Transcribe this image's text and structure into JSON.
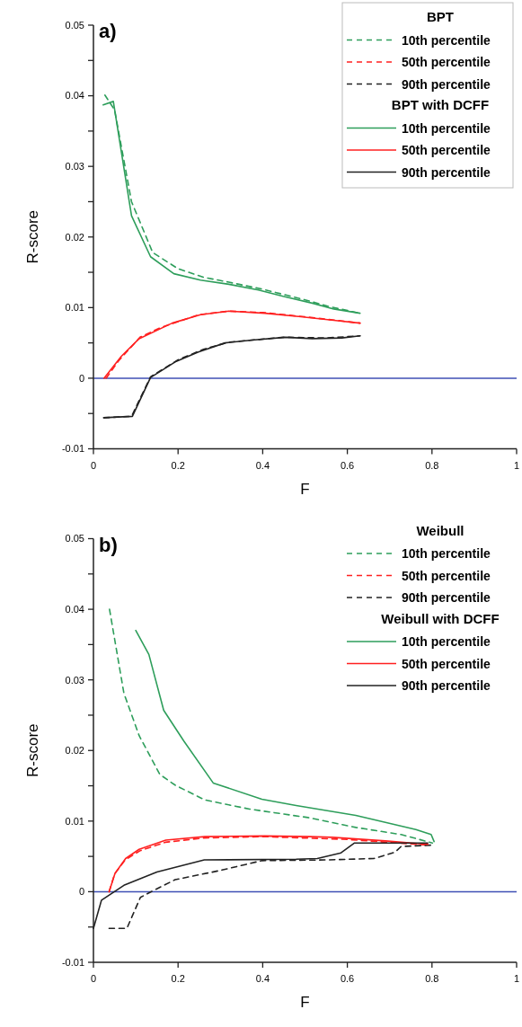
{
  "chart_data": [
    {
      "type": "line",
      "title": "a)",
      "xlabel": "F",
      "ylabel": "R-score",
      "xlim": [
        0,
        1
      ],
      "ylim": [
        -0.01,
        0.05
      ],
      "xticks": [
        0,
        0.2,
        0.4,
        0.6,
        0.8,
        1
      ],
      "yticks": [
        -0.01,
        {
          "value": -0.005,
          "label": null
        },
        0,
        {
          "value": 0.005,
          "label": null
        },
        0.01,
        {
          "value": 0.015,
          "label": null
        },
        0.02,
        {
          "value": 0.025,
          "label": null
        },
        0.03,
        {
          "value": 0.035,
          "label": null
        },
        0.04,
        {
          "value": 0.045,
          "label": null
        },
        0.05
      ],
      "legend": "top right",
      "grid": false,
      "annotations": [
        "BPT",
        "BPT with DCFF"
      ],
      "ref_lines": [
        {
          "axis": "y",
          "value": 0,
          "color": "#3f4fb5"
        }
      ],
      "series": [
        {
          "name": "10th percentile",
          "color": "#2e9e5b",
          "line_style": "dashed",
          "x": [
            0.027,
            0.05,
            0.09,
            0.14,
            0.2,
            0.26,
            0.32,
            0.4,
            0.5,
            0.56,
            0.63
          ],
          "values": [
            0.0401,
            0.038,
            0.025,
            0.0178,
            0.0155,
            0.0143,
            0.0136,
            0.0126,
            0.0111,
            0.0101,
            0.0092
          ]
        },
        {
          "name": "50th percentile",
          "color": "#ff2020",
          "line_style": "dashed",
          "x": [
            0.03,
            0.06,
            0.11,
            0.16,
            0.25,
            0.32,
            0.4,
            0.5,
            0.63
          ],
          "values": [
            0,
            0.0025,
            0.0058,
            0.0072,
            0.009,
            0.0095,
            0.0093,
            0.0087,
            0.0078
          ]
        },
        {
          "name": "90th percentile",
          "color": "#222222",
          "line_style": "dashed",
          "x": [
            0.025,
            0.09,
            0.135,
            0.2,
            0.26,
            0.32,
            0.45,
            0.55,
            0.63
          ],
          "values": [
            -0.0056,
            -0.0054,
            0.0002,
            0.0026,
            0.0041,
            0.0051,
            0.0058,
            0.0057,
            0.006
          ]
        },
        {
          "name": "10th percentile",
          "color": "#2e9e5b",
          "line_style": "solid",
          "x": [
            0.023,
            0.047,
            0.09,
            0.135,
            0.19,
            0.253,
            0.32,
            0.39,
            0.448,
            0.519,
            0.568,
            0.63
          ],
          "values": [
            0.0387,
            0.0392,
            0.023,
            0.0172,
            0.0148,
            0.0139,
            0.0133,
            0.0125,
            0.0116,
            0.0106,
            0.0098,
            0.0092
          ]
        },
        {
          "name": "50th percentile",
          "color": "#ff2020",
          "line_style": "solid",
          "x": [
            0.025,
            0.066,
            0.108,
            0.186,
            0.253,
            0.32,
            0.405,
            0.49,
            0.568,
            0.63
          ],
          "values": [
            0,
            0.0031,
            0.0056,
            0.0078,
            0.009,
            0.0095,
            0.0092,
            0.0087,
            0.0082,
            0.0078
          ]
        },
        {
          "name": "90th percentile",
          "color": "#222222",
          "line_style": "solid",
          "x": [
            0.024,
            0.092,
            0.135,
            0.193,
            0.248,
            0.311,
            0.375,
            0.454,
            0.517,
            0.587,
            0.63
          ],
          "values": [
            -0.0056,
            -0.0054,
            0.0001,
            0.0023,
            0.0037,
            0.005,
            0.0054,
            0.0058,
            0.0056,
            0.0057,
            0.006
          ]
        }
      ]
    },
    {
      "type": "line",
      "title": "b)",
      "xlabel": "F",
      "ylabel": "R-score",
      "xlim": [
        0,
        1
      ],
      "ylim": [
        -0.01,
        0.05
      ],
      "xticks": [
        0,
        0.2,
        0.4,
        0.6,
        0.8,
        1
      ],
      "yticks": [
        -0.01,
        {
          "value": -0.005,
          "label": null
        },
        0,
        {
          "value": 0.005,
          "label": null
        },
        0.01,
        {
          "value": 0.015,
          "label": null
        },
        0.02,
        {
          "value": 0.025,
          "label": null
        },
        0.03,
        {
          "value": 0.035,
          "label": null
        },
        0.04,
        {
          "value": 0.045,
          "label": null
        },
        0.05
      ],
      "legend": "top right",
      "grid": false,
      "annotations": [
        "Weibull",
        "Weibull with DCFF"
      ],
      "ref_lines": [
        {
          "axis": "y",
          "value": 0,
          "color": "#3f4fb5"
        }
      ],
      "series": [
        {
          "name": "10th percentile",
          "color": "#2e9e5b",
          "line_style": "dashed",
          "x": [
            0.038,
            0.072,
            0.108,
            0.157,
            0.193,
            0.263,
            0.369,
            0.507,
            0.62,
            0.727,
            0.801
          ],
          "values": [
            0.04,
            0.0281,
            0.0221,
            0.0166,
            0.0151,
            0.013,
            0.0117,
            0.0105,
            0.0091,
            0.0081,
            0.0069
          ]
        },
        {
          "name": "50th percentile",
          "color": "#ff2020",
          "line_style": "dashed",
          "x": [
            0.037,
            0.05,
            0.075,
            0.11,
            0.17,
            0.26,
            0.4,
            0.6,
            0.79
          ],
          "values": [
            0,
            0.0025,
            0.0045,
            0.0058,
            0.007,
            0.0076,
            0.0078,
            0.0074,
            0.0066
          ]
        },
        {
          "name": "90th percentile",
          "color": "#222222",
          "line_style": "dashed",
          "x": [
            0.037,
            0.079,
            0.111,
            0.143,
            0.193,
            0.299,
            0.398,
            0.55,
            0.663,
            0.713,
            0.727,
            0.801
          ],
          "values": [
            -0.0052,
            -0.0052,
            -0.0008,
            0.0002,
            0.0017,
            0.003,
            0.0044,
            0.0045,
            0.0047,
            0.0056,
            0.0064,
            0.0066
          ]
        },
        {
          "name": "10th percentile",
          "color": "#2e9e5b",
          "line_style": "solid",
          "x": [
            0.1,
            0.131,
            0.166,
            0.214,
            0.283,
            0.398,
            0.479,
            0.62,
            0.762,
            0.798,
            0.805
          ],
          "values": [
            0.037,
            0.0336,
            0.0257,
            0.0213,
            0.0154,
            0.0131,
            0.0122,
            0.0108,
            0.0088,
            0.0081,
            0.0071
          ]
        },
        {
          "name": "50th percentile",
          "color": "#ff2020",
          "line_style": "solid",
          "x": [
            0.037,
            0.051,
            0.076,
            0.108,
            0.171,
            0.263,
            0.405,
            0.511,
            0.564,
            0.69,
            0.79
          ],
          "values": [
            0,
            0.0026,
            0.0047,
            0.006,
            0.0073,
            0.0078,
            0.0079,
            0.0078,
            0.0077,
            0.0072,
            0.0067
          ]
        },
        {
          "name": "90th percentile",
          "color": "#222222",
          "line_style": "solid",
          "x": [
            0,
            0.019,
            0.072,
            0.15,
            0.262,
            0.479,
            0.529,
            0.585,
            0.617,
            0.769,
            0.79
          ],
          "values": [
            -0.0052,
            -0.0012,
            0.0009,
            0.0028,
            0.0045,
            0.0046,
            0.0047,
            0.0055,
            0.0069,
            0.0069,
            0.0069
          ]
        }
      ]
    }
  ]
}
